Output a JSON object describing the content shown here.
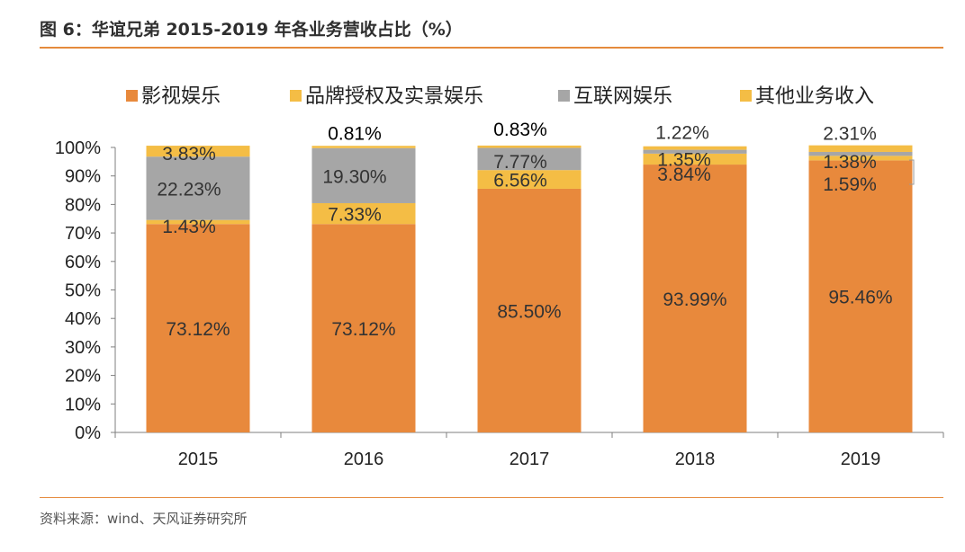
{
  "header": {
    "title": "图 6：华谊兄弟 2015-2019 年各业务营收占比（%）"
  },
  "footer": {
    "source": "资料来源：wind、天风证券研究所"
  },
  "colors": {
    "accent": "#e58a3c"
  },
  "chart_data": {
    "type": "bar",
    "stacked": true,
    "percent": true,
    "title": "华谊兄弟 2015-2019 年各业务营收占比（%）",
    "categories": [
      "2015",
      "2016",
      "2017",
      "2018",
      "2019"
    ],
    "ylim": [
      0,
      100
    ],
    "yticks": [
      "0%",
      "10%",
      "20%",
      "30%",
      "40%",
      "50%",
      "60%",
      "70%",
      "80%",
      "90%",
      "100%"
    ],
    "legend_position": "top",
    "series": [
      {
        "name": "影视娱乐",
        "color": "#e8893c",
        "values": [
          73.12,
          73.12,
          85.5,
          93.99,
          95.46
        ],
        "labels": [
          "73.12%",
          "73.12%",
          "85.50%",
          "93.99%",
          "95.46%"
        ]
      },
      {
        "name": "品牌授权及实景娱乐",
        "color": "#f4bd45",
        "values": [
          1.43,
          7.33,
          6.56,
          3.84,
          1.59
        ],
        "labels": [
          "1.43%",
          "7.33%",
          "6.56%",
          "3.84%",
          "1.59%"
        ]
      },
      {
        "name": "互联网娱乐",
        "color": "#a6a6a6",
        "values": [
          22.23,
          19.3,
          7.77,
          1.35,
          1.38
        ],
        "labels": [
          "22.23%",
          "19.30%",
          "7.77%",
          "1.35%",
          "1.38%"
        ]
      },
      {
        "name": "其他业务收入",
        "color": "#f4bd45",
        "values": [
          3.83,
          0.81,
          0.83,
          1.22,
          2.31
        ],
        "labels": [
          "3.83%",
          "0.81%",
          "0.83%",
          "1.22%",
          "2.31%"
        ]
      }
    ]
  }
}
